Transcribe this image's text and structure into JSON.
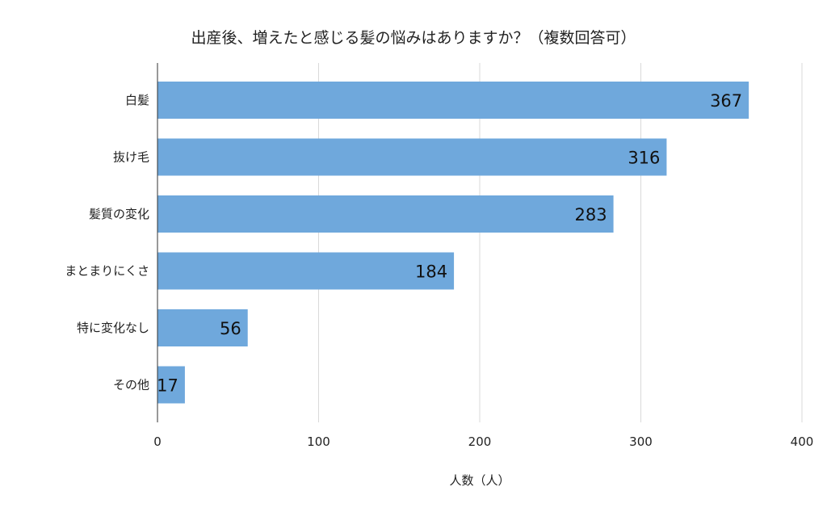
{
  "chart_data": {
    "type": "bar",
    "orientation": "horizontal",
    "title": "出産後、増えたと感じる髪の悩みはありますか？（複数回答可）",
    "xlabel": "人数（人）",
    "ylabel": "",
    "categories": [
      "白髪",
      "抜け毛",
      "髪質の変化",
      "まとまりにくさ",
      "特に変化なし",
      "その他"
    ],
    "values": [
      367,
      316,
      283,
      184,
      56,
      17
    ],
    "data_labels": [
      "367",
      "316",
      "283",
      "184",
      "56",
      "17"
    ],
    "xlim": [
      0,
      400
    ],
    "xticks": [
      0,
      100,
      200,
      300,
      400
    ],
    "xtick_labels": [
      "0",
      "100",
      "200",
      "300",
      "400"
    ],
    "grid": "vertical",
    "legend": "none",
    "bar_color": "#6fa8dc"
  }
}
